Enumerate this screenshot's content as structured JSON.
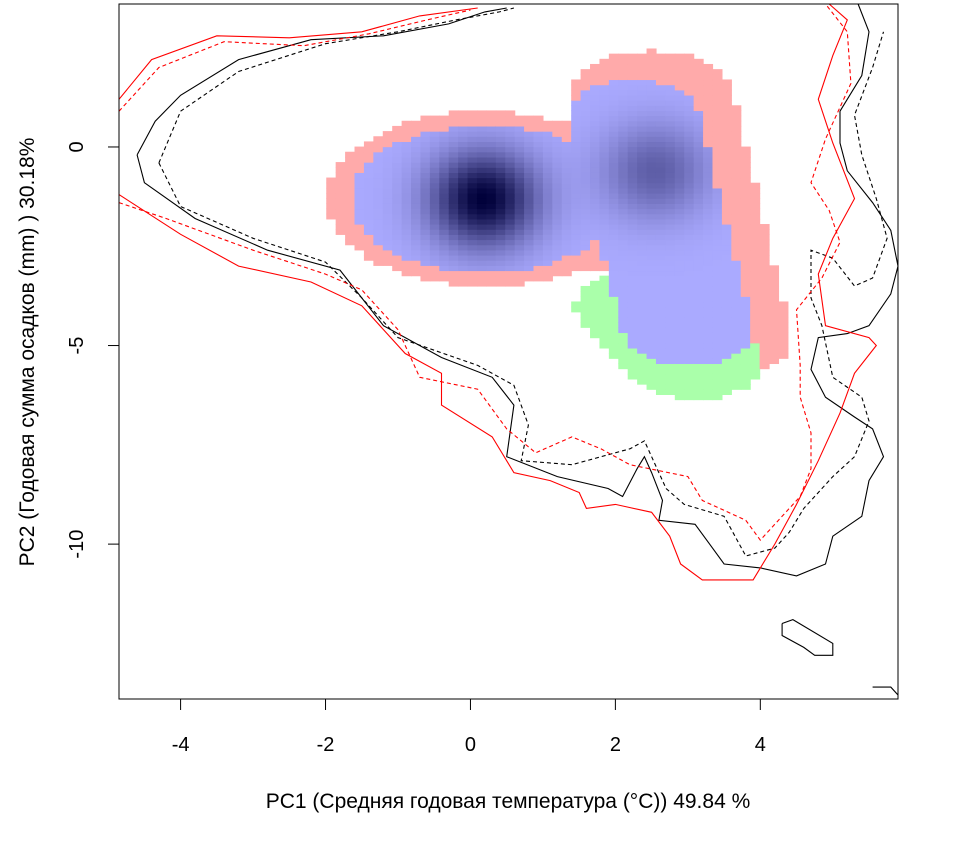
{
  "chart_data": {
    "type": "heatmap",
    "title": "",
    "xlabel": "PC1 (Средняя годовая температура (°C)) 49.84 %",
    "ylabel": "PC2 (Годовая сумма осадков  (mm) ) 30.18%",
    "xlim": [
      -4.85,
      5.9
    ],
    "ylim": [
      -13.9,
      3.6
    ],
    "xticks": [
      -4,
      -2,
      0,
      2,
      4
    ],
    "yticks": [
      0,
      -5,
      -10
    ],
    "xtick_labels": [
      "-4",
      "-2",
      "0",
      "2",
      "4"
    ],
    "ytick_labels": [
      "0",
      "-5",
      "-10"
    ],
    "grid": false,
    "legend": "none",
    "colors": {
      "overlap_density_low": "#aaaaff",
      "overlap_density_high": "#00003a",
      "range_a_only": "#ffaaaa",
      "range_b_only": "#aaffaa",
      "contour_a": "#ff0000",
      "contour_b": "#000000"
    },
    "density_peaks": [
      {
        "x": 0.18,
        "y": -1.3,
        "intensity": 1.0
      },
      {
        "x": 2.55,
        "y": -0.6,
        "intensity": 0.45
      }
    ],
    "contours": [
      {
        "color": "#000000",
        "style": "solid",
        "points": [
          [
            -4.6,
            -0.2
          ],
          [
            -4.35,
            0.65
          ],
          [
            -4.0,
            1.3
          ],
          [
            -3.2,
            2.2
          ],
          [
            -2.2,
            2.7
          ],
          [
            -1.2,
            2.8
          ],
          [
            -0.3,
            3.1
          ],
          [
            0.2,
            3.4
          ],
          [
            0.5,
            3.5
          ]
        ]
      },
      {
        "color": "#000000",
        "style": "dashed",
        "points": [
          [
            -4.3,
            -0.4
          ],
          [
            -4.0,
            0.9
          ],
          [
            -3.2,
            1.9
          ],
          [
            -2.0,
            2.6
          ],
          [
            -1.0,
            2.9
          ],
          [
            -0.2,
            3.2
          ],
          [
            0.4,
            3.4
          ],
          [
            0.6,
            3.5
          ]
        ]
      },
      {
        "color": "#ff0000",
        "style": "solid",
        "points": [
          [
            -4.85,
            1.2
          ],
          [
            -4.4,
            2.2
          ],
          [
            -3.5,
            2.8
          ],
          [
            -2.5,
            2.75
          ],
          [
            -1.5,
            2.9
          ],
          [
            -0.7,
            3.3
          ],
          [
            0.1,
            3.5
          ]
        ]
      },
      {
        "color": "#ff0000",
        "style": "dashed",
        "points": [
          [
            -4.85,
            0.9
          ],
          [
            -4.3,
            2.0
          ],
          [
            -3.4,
            2.65
          ],
          [
            -2.3,
            2.55
          ],
          [
            -1.4,
            2.85
          ],
          [
            -0.6,
            3.2
          ],
          [
            0.0,
            3.45
          ]
        ]
      },
      {
        "color": "#000000",
        "style": "solid",
        "points": [
          [
            -4.6,
            -0.2
          ],
          [
            -4.5,
            -0.9
          ],
          [
            -3.8,
            -1.8
          ],
          [
            -2.8,
            -2.6
          ],
          [
            -1.8,
            -3.1
          ],
          [
            -1.2,
            -4.5
          ],
          [
            -0.4,
            -5.3
          ],
          [
            0.3,
            -5.8
          ],
          [
            0.6,
            -6.5
          ],
          [
            0.5,
            -7.8
          ],
          [
            1.2,
            -8.3
          ],
          [
            1.9,
            -8.6
          ],
          [
            2.1,
            -8.8
          ],
          [
            2.3,
            -8.1
          ],
          [
            2.4,
            -7.8
          ],
          [
            2.5,
            -8.2
          ],
          [
            2.65,
            -8.9
          ],
          [
            2.6,
            -9.4
          ],
          [
            3.1,
            -9.5
          ],
          [
            3.3,
            -10.0
          ],
          [
            3.5,
            -10.5
          ],
          [
            4.0,
            -10.6
          ],
          [
            4.5,
            -10.8
          ],
          [
            4.9,
            -10.5
          ],
          [
            5.0,
            -9.8
          ],
          [
            5.4,
            -9.3
          ],
          [
            5.5,
            -8.4
          ],
          [
            5.7,
            -7.8
          ],
          [
            5.55,
            -7.1
          ],
          [
            5.3,
            -6.8
          ],
          [
            4.9,
            -6.3
          ],
          [
            4.7,
            -5.6
          ],
          [
            4.8,
            -4.8
          ],
          [
            5.2,
            -4.7
          ],
          [
            5.5,
            -4.5
          ],
          [
            5.8,
            -3.7
          ],
          [
            5.9,
            -3.0
          ],
          [
            5.8,
            -2.1
          ],
          [
            5.55,
            -1.4
          ],
          [
            5.2,
            -0.6
          ],
          [
            5.1,
            0.1
          ],
          [
            5.1,
            0.9
          ],
          [
            5.4,
            1.8
          ],
          [
            5.5,
            2.9
          ],
          [
            5.35,
            3.6
          ]
        ]
      },
      {
        "color": "#000000",
        "style": "dashed",
        "points": [
          [
            -4.3,
            -0.4
          ],
          [
            -4.0,
            -1.5
          ],
          [
            -3.0,
            -2.3
          ],
          [
            -2.0,
            -2.9
          ],
          [
            -1.5,
            -3.8
          ],
          [
            -1.0,
            -4.8
          ],
          [
            0.1,
            -5.5
          ],
          [
            0.6,
            -6.0
          ],
          [
            0.8,
            -7.0
          ],
          [
            0.7,
            -7.9
          ],
          [
            1.4,
            -8.0
          ],
          [
            2.2,
            -7.6
          ],
          [
            2.4,
            -7.4
          ],
          [
            2.5,
            -7.8
          ],
          [
            2.7,
            -8.6
          ],
          [
            2.95,
            -9.0
          ],
          [
            3.5,
            -9.3
          ],
          [
            3.65,
            -9.8
          ],
          [
            3.8,
            -10.3
          ],
          [
            4.2,
            -10.1
          ],
          [
            4.4,
            -9.7
          ],
          [
            4.6,
            -9.1
          ],
          [
            5.0,
            -8.3
          ],
          [
            5.3,
            -7.8
          ],
          [
            5.5,
            -6.9
          ],
          [
            5.4,
            -6.3
          ],
          [
            5.0,
            -5.8
          ],
          [
            4.85,
            -4.5
          ],
          [
            4.7,
            -3.8
          ],
          [
            4.7,
            -2.6
          ],
          [
            5.0,
            -2.8
          ],
          [
            5.3,
            -3.5
          ],
          [
            5.55,
            -3.3
          ],
          [
            5.75,
            -2.3
          ],
          [
            5.6,
            -1.3
          ],
          [
            5.4,
            -0.2
          ],
          [
            5.3,
            0.8
          ],
          [
            5.55,
            2.0
          ],
          [
            5.7,
            2.9
          ]
        ]
      },
      {
        "color": "#ff0000",
        "style": "solid",
        "points": [
          [
            -4.85,
            -1.2
          ],
          [
            -4.0,
            -2.2
          ],
          [
            -3.2,
            -3.0
          ],
          [
            -2.2,
            -3.4
          ],
          [
            -1.5,
            -4.0
          ],
          [
            -0.9,
            -5.2
          ],
          [
            -0.4,
            -5.7
          ],
          [
            -0.4,
            -6.5
          ],
          [
            0.3,
            -7.3
          ],
          [
            0.6,
            -8.2
          ],
          [
            1.1,
            -8.4
          ],
          [
            1.5,
            -8.7
          ],
          [
            1.6,
            -9.1
          ],
          [
            2.0,
            -9.0
          ],
          [
            2.5,
            -9.2
          ],
          [
            2.75,
            -9.8
          ],
          [
            2.9,
            -10.5
          ],
          [
            3.2,
            -10.9
          ],
          [
            3.9,
            -10.9
          ],
          [
            4.2,
            -10.0
          ],
          [
            4.5,
            -9.0
          ],
          [
            4.8,
            -7.9
          ],
          [
            5.1,
            -6.7
          ],
          [
            5.3,
            -5.7
          ],
          [
            5.6,
            -5.0
          ],
          [
            5.5,
            -4.8
          ],
          [
            4.9,
            -4.5
          ],
          [
            4.8,
            -3.2
          ],
          [
            5.0,
            -2.3
          ],
          [
            5.3,
            -1.3
          ],
          [
            5.0,
            0.1
          ],
          [
            4.8,
            1.2
          ],
          [
            5.0,
            2.3
          ],
          [
            5.2,
            3.2
          ],
          [
            4.95,
            3.6
          ]
        ]
      },
      {
        "color": "#ff0000",
        "style": "dashed",
        "points": [
          [
            -4.85,
            -1.4
          ],
          [
            -4.2,
            -1.8
          ],
          [
            -3.0,
            -2.6
          ],
          [
            -2.0,
            -3.2
          ],
          [
            -1.5,
            -3.6
          ],
          [
            -1.0,
            -4.6
          ],
          [
            -0.7,
            -5.8
          ],
          [
            0.1,
            -6.1
          ],
          [
            0.5,
            -7.1
          ],
          [
            0.9,
            -7.7
          ],
          [
            1.4,
            -7.3
          ],
          [
            1.8,
            -7.6
          ],
          [
            2.2,
            -8.0
          ],
          [
            3.0,
            -8.3
          ],
          [
            3.2,
            -8.9
          ],
          [
            3.8,
            -9.4
          ],
          [
            4.0,
            -9.9
          ],
          [
            4.3,
            -9.3
          ],
          [
            4.55,
            -8.8
          ],
          [
            4.7,
            -8.1
          ],
          [
            4.7,
            -7.2
          ],
          [
            4.55,
            -6.3
          ],
          [
            4.55,
            -5.5
          ],
          [
            4.5,
            -4.1
          ],
          [
            4.85,
            -3.3
          ],
          [
            5.1,
            -2.4
          ],
          [
            4.95,
            -1.6
          ],
          [
            4.7,
            -0.9
          ],
          [
            4.9,
            0.2
          ],
          [
            5.25,
            1.6
          ],
          [
            5.2,
            2.9
          ],
          [
            4.9,
            3.6
          ]
        ]
      },
      {
        "color": "#000000",
        "style": "solid",
        "points": [
          [
            4.3,
            -12.0
          ],
          [
            4.45,
            -11.9
          ],
          [
            5.0,
            -12.5
          ],
          [
            5.0,
            -12.8
          ],
          [
            4.75,
            -12.8
          ],
          [
            4.6,
            -12.6
          ],
          [
            4.3,
            -12.3
          ],
          [
            4.3,
            -12.0
          ]
        ]
      },
      {
        "color": "#000000",
        "style": "solid",
        "points": [
          [
            5.55,
            -13.6
          ],
          [
            5.8,
            -13.6
          ],
          [
            5.9,
            -13.8
          ]
        ]
      }
    ]
  }
}
